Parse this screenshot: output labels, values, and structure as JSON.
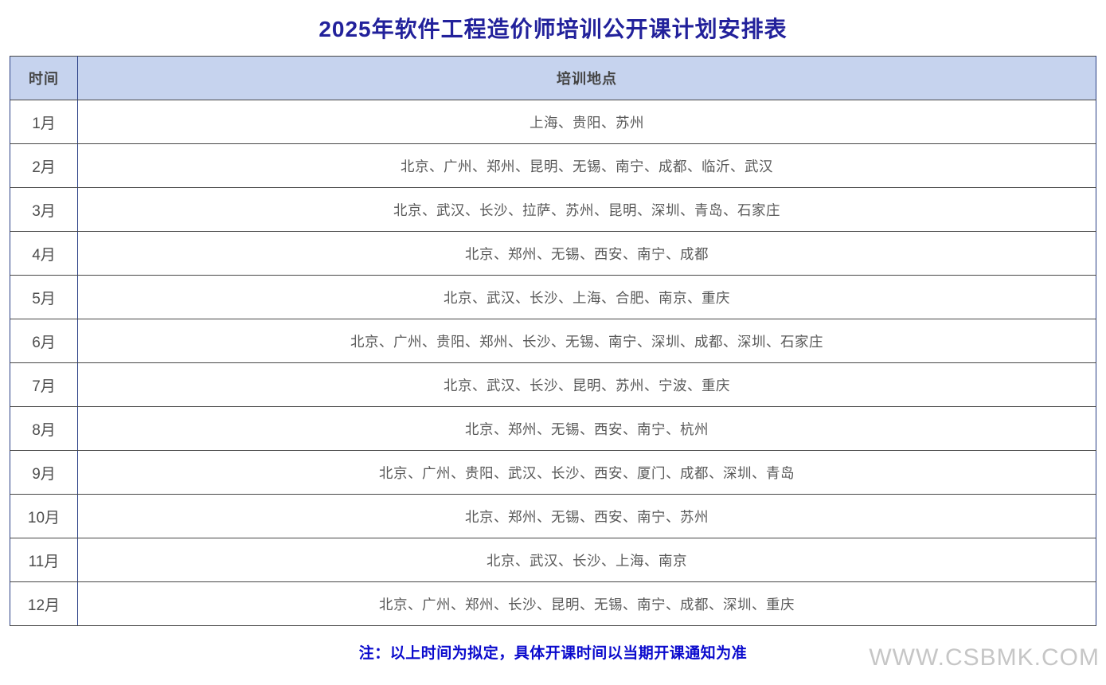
{
  "title": "2025年软件工程造价师培训公开课计划安排表",
  "table": {
    "headers": [
      "时间",
      "培训地点"
    ],
    "rows": [
      {
        "month": "1月",
        "locations": "上海、贵阳、苏州"
      },
      {
        "month": "2月",
        "locations": "北京、广州、郑州、昆明、无锡、南宁、成都、临沂、武汉"
      },
      {
        "month": "3月",
        "locations": "北京、武汉、长沙、拉萨、苏州、昆明、深圳、青岛、石家庄"
      },
      {
        "month": "4月",
        "locations": "北京、郑州、无锡、西安、南宁、成都"
      },
      {
        "month": "5月",
        "locations": "北京、武汉、长沙、上海、合肥、南京、重庆"
      },
      {
        "month": "6月",
        "locations": "北京、广州、贵阳、郑州、长沙、无锡、南宁、深圳、成都、深圳、石家庄"
      },
      {
        "month": "7月",
        "locations": "北京、武汉、长沙、昆明、苏州、宁波、重庆"
      },
      {
        "month": "8月",
        "locations": "北京、郑州、无锡、西安、南宁、杭州"
      },
      {
        "month": "9月",
        "locations": "北京、广州、贵阳、武汉、长沙、西安、厦门、成都、深圳、青岛"
      },
      {
        "month": "10月",
        "locations": "北京、郑州、无锡、西安、南宁、苏州"
      },
      {
        "month": "11月",
        "locations": "北京、武汉、长沙、上海、南京"
      },
      {
        "month": "12月",
        "locations": "北京、广州、郑州、长沙、昆明、无锡、南宁、成都、深圳、重庆"
      }
    ]
  },
  "note": "注：以上时间为拟定，具体开课时间以当期开课通知为准",
  "watermark": "WWW.CSBMK.COM",
  "colors": {
    "title_navy": "#22219b",
    "header_background": "#c6d3ee",
    "header_text": "#454545",
    "cell_text": "#595959",
    "border_horizontal": "#474747",
    "border_vertical": "#2a3f85",
    "note_blue": "#0b0bcd",
    "watermark_gray": "#c6c6c6"
  }
}
